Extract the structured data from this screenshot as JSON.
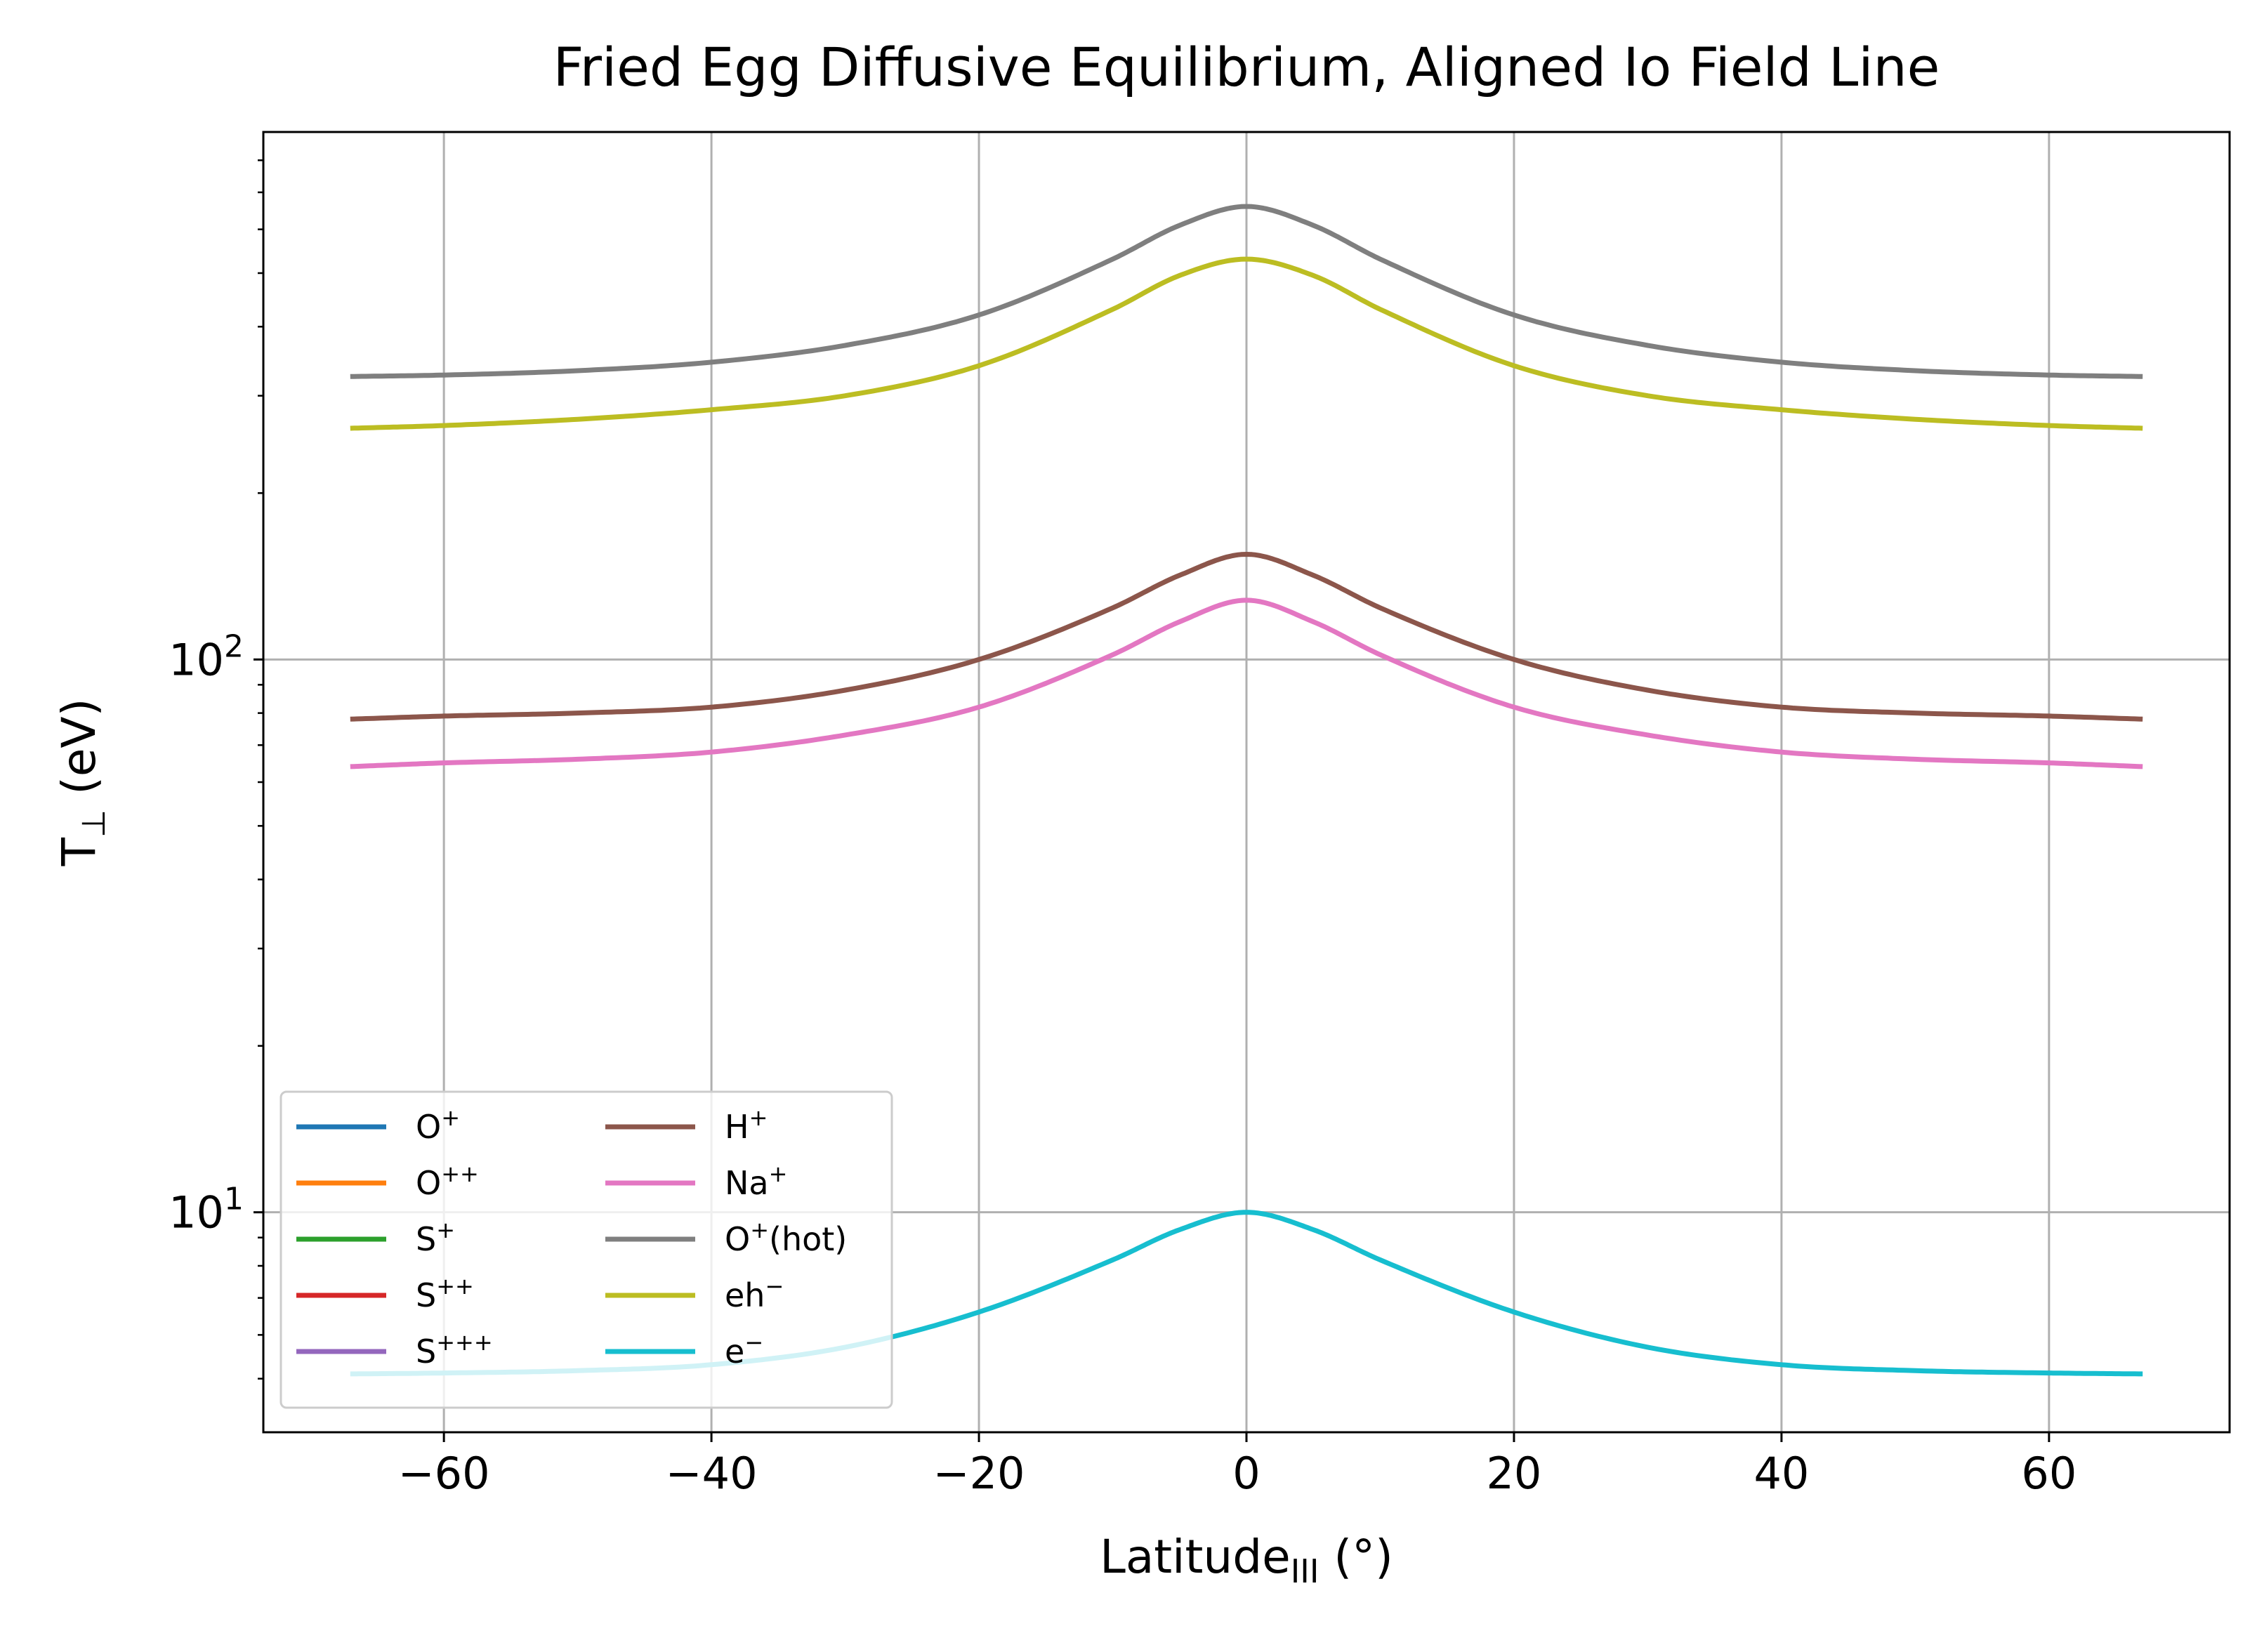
{
  "chart_data": {
    "type": "line",
    "title": "Fried Egg Diffusive Equilibrium, Aligned Io Field Line",
    "xlabel": {
      "base": "Latitude",
      "sub": "III",
      "suffix": " (°)"
    },
    "ylabel": {
      "base": "T",
      "sub": "⊥",
      "suffix": " (eV)"
    },
    "xlim": [
      -73.5,
      73.5
    ],
    "ylim": [
      4.0,
      900
    ],
    "yscale": "log",
    "grid": true,
    "legend_position": "lower-left",
    "legend_columns": 2,
    "x_ticks": [
      -60,
      -40,
      -20,
      0,
      20,
      40,
      60
    ],
    "x_tick_labels": [
      "−60",
      "−40",
      "−20",
      "0",
      "20",
      "40",
      "60"
    ],
    "y_ticks": [
      10,
      100
    ],
    "y_tick_labels": [
      {
        "base": "10",
        "exp": "1"
      },
      {
        "base": "10",
        "exp": "2"
      }
    ],
    "x": [
      -67,
      -60,
      -50,
      -40,
      -30,
      -20,
      -10,
      -5,
      0,
      5,
      10,
      20,
      30,
      40,
      50,
      60,
      67
    ],
    "series": [
      {
        "name": "O",
        "sup": "+",
        "color": "#1f77b4",
        "values": null
      },
      {
        "name": "O",
        "sup": "++",
        "color": "#ff7f0e",
        "values": null
      },
      {
        "name": "S",
        "sup": "+",
        "color": "#2ca02c",
        "values": null
      },
      {
        "name": "S",
        "sup": "++",
        "color": "#d62728",
        "values": null
      },
      {
        "name": "S",
        "sup": "+++",
        "color": "#9467bd",
        "values": null
      },
      {
        "name": "H",
        "sup": "+",
        "color": "#8c564b",
        "values": [
          78,
          79,
          80,
          82,
          88,
          100,
          124,
          142,
          155,
          142,
          124,
          100,
          88,
          82,
          80,
          79,
          78
        ]
      },
      {
        "name": "Na",
        "sup": "+",
        "color": "#e377c2",
        "values": [
          64,
          65,
          66,
          68,
          73,
          82,
          102,
          117,
          128,
          117,
          102,
          82,
          73,
          68,
          66,
          65,
          64
        ]
      },
      {
        "name": "O",
        "sup": "+",
        "after": "(hot)",
        "color": "#7f7f7f",
        "values": [
          325,
          327,
          333,
          345,
          370,
          420,
          530,
          610,
          660,
          610,
          530,
          420,
          370,
          345,
          333,
          327,
          325
        ]
      },
      {
        "name": "eh",
        "sup": "−",
        "color": "#bcbd22",
        "values": [
          262,
          265,
          272,
          283,
          300,
          340,
          430,
          495,
          530,
          495,
          430,
          340,
          300,
          283,
          272,
          265,
          262
        ]
      },
      {
        "name": "e",
        "sup": "−",
        "color": "#17becf",
        "values": [
          5.1,
          5.12,
          5.17,
          5.3,
          5.7,
          6.6,
          8.2,
          9.3,
          10,
          9.3,
          8.2,
          6.6,
          5.7,
          5.3,
          5.17,
          5.12,
          5.1
        ]
      }
    ]
  }
}
